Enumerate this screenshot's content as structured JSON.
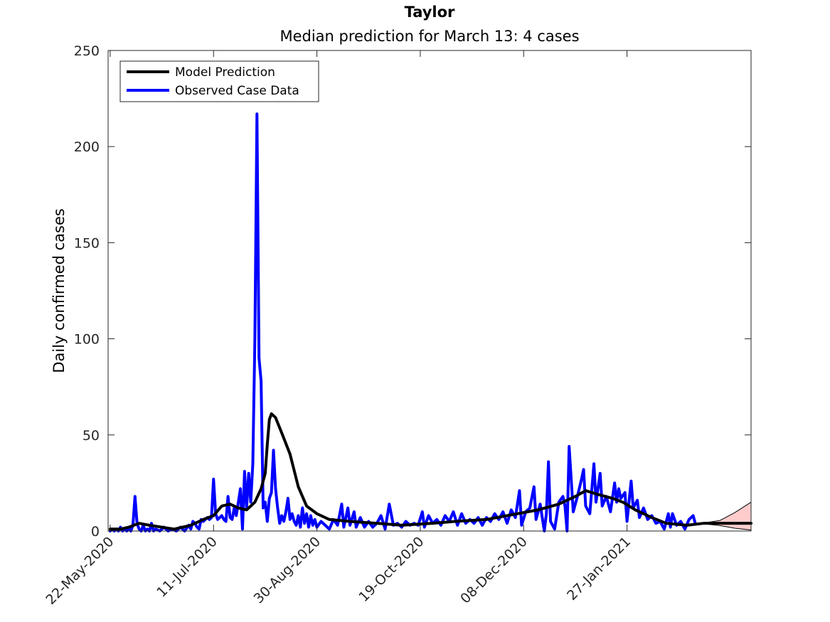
{
  "chart_data": {
    "type": "line",
    "title": "Taylor",
    "subtitle": "Median prediction for March 13: 4 cases",
    "xlabel": "",
    "ylabel": "Daily confirmed cases",
    "x_range": [
      "2020-05-21",
      "2021-03-28"
    ],
    "ylim": [
      0,
      250
    ],
    "y_ticks": [
      0,
      50,
      100,
      150,
      200,
      250
    ],
    "x_tick_labels": [
      "22-May-2020",
      "11-Jul-2020",
      "30-Aug-2020",
      "19-Oct-2020",
      "08-Dec-2020",
      "27-Jan-2021"
    ],
    "x_tick_dates": [
      "2020-05-22",
      "2020-07-11",
      "2020-08-30",
      "2020-10-19",
      "2020-12-08",
      "2021-01-27"
    ],
    "grid": false,
    "legend_position": "top-left",
    "colors": {
      "model": "#000000",
      "observed": "#0000ff",
      "band_fill": "#ffcccc"
    },
    "series": [
      {
        "name": "Model Prediction",
        "color": "#000000",
        "points": [
          [
            "2020-05-22",
            1
          ],
          [
            "2020-05-27",
            1
          ],
          [
            "2020-05-31",
            2
          ],
          [
            "2020-06-05",
            4
          ],
          [
            "2020-06-10",
            3
          ],
          [
            "2020-06-16",
            2
          ],
          [
            "2020-06-22",
            1
          ],
          [
            "2020-06-30",
            3
          ],
          [
            "2020-07-06",
            6
          ],
          [
            "2020-07-11",
            8
          ],
          [
            "2020-07-15",
            13
          ],
          [
            "2020-07-19",
            14
          ],
          [
            "2020-07-23",
            12
          ],
          [
            "2020-07-27",
            11
          ],
          [
            "2020-07-31",
            15
          ],
          [
            "2020-08-03",
            22
          ],
          [
            "2020-08-05",
            30
          ],
          [
            "2020-08-06",
            45
          ],
          [
            "2020-08-07",
            58
          ],
          [
            "2020-08-08",
            61
          ],
          [
            "2020-08-10",
            59
          ],
          [
            "2020-08-13",
            51
          ],
          [
            "2020-08-17",
            40
          ],
          [
            "2020-08-21",
            23
          ],
          [
            "2020-08-25",
            13
          ],
          [
            "2020-08-30",
            9
          ],
          [
            "2020-09-05",
            6
          ],
          [
            "2020-09-15",
            5
          ],
          [
            "2020-09-28",
            4
          ],
          [
            "2020-10-10",
            3
          ],
          [
            "2020-10-25",
            4
          ],
          [
            "2020-11-05",
            5
          ],
          [
            "2020-11-20",
            6
          ],
          [
            "2020-12-05",
            9
          ],
          [
            "2020-12-15",
            11
          ],
          [
            "2020-12-25",
            14
          ],
          [
            "2021-01-02",
            18
          ],
          [
            "2021-01-07",
            21
          ],
          [
            "2021-01-13",
            19
          ],
          [
            "2021-01-20",
            17
          ],
          [
            "2021-01-25",
            15
          ],
          [
            "2021-01-31",
            11
          ],
          [
            "2021-02-08",
            7
          ],
          [
            "2021-02-15",
            4
          ],
          [
            "2021-02-25",
            3
          ],
          [
            "2021-03-05",
            4
          ],
          [
            "2021-03-13",
            4
          ],
          [
            "2021-03-28",
            4
          ]
        ]
      },
      {
        "name": "Observed Case Data",
        "color": "#0000ff",
        "points": [
          [
            "2020-05-22",
            0
          ],
          [
            "2020-05-23",
            1
          ],
          [
            "2020-05-24",
            0
          ],
          [
            "2020-05-25",
            1
          ],
          [
            "2020-05-26",
            0
          ],
          [
            "2020-05-27",
            2
          ],
          [
            "2020-05-28",
            0
          ],
          [
            "2020-05-29",
            1
          ],
          [
            "2020-05-30",
            0
          ],
          [
            "2020-05-31",
            1
          ],
          [
            "2020-06-01",
            0
          ],
          [
            "2020-06-02",
            3
          ],
          [
            "2020-06-03",
            18
          ],
          [
            "2020-06-04",
            4
          ],
          [
            "2020-06-05",
            1
          ],
          [
            "2020-06-06",
            0
          ],
          [
            "2020-06-07",
            3
          ],
          [
            "2020-06-08",
            0
          ],
          [
            "2020-06-09",
            1
          ],
          [
            "2020-06-10",
            0
          ],
          [
            "2020-06-11",
            4
          ],
          [
            "2020-06-12",
            0
          ],
          [
            "2020-06-13",
            1
          ],
          [
            "2020-06-15",
            0
          ],
          [
            "2020-06-17",
            2
          ],
          [
            "2020-06-19",
            0
          ],
          [
            "2020-06-21",
            1
          ],
          [
            "2020-06-23",
            0
          ],
          [
            "2020-06-25",
            2
          ],
          [
            "2020-06-27",
            0
          ],
          [
            "2020-06-29",
            3
          ],
          [
            "2020-06-30",
            1
          ],
          [
            "2020-07-01",
            5
          ],
          [
            "2020-07-02",
            4
          ],
          [
            "2020-07-03",
            2
          ],
          [
            "2020-07-04",
            1
          ],
          [
            "2020-07-05",
            6
          ],
          [
            "2020-07-06",
            5
          ],
          [
            "2020-07-07",
            6
          ],
          [
            "2020-07-08",
            7
          ],
          [
            "2020-07-09",
            6
          ],
          [
            "2020-07-10",
            7
          ],
          [
            "2020-07-11",
            27
          ],
          [
            "2020-07-12",
            9
          ],
          [
            "2020-07-13",
            6
          ],
          [
            "2020-07-14",
            7
          ],
          [
            "2020-07-15",
            8
          ],
          [
            "2020-07-16",
            6
          ],
          [
            "2020-07-17",
            5
          ],
          [
            "2020-07-18",
            18
          ],
          [
            "2020-07-19",
            7
          ],
          [
            "2020-07-20",
            6
          ],
          [
            "2020-07-21",
            12
          ],
          [
            "2020-07-22",
            8
          ],
          [
            "2020-07-23",
            15
          ],
          [
            "2020-07-24",
            22
          ],
          [
            "2020-07-25",
            1
          ],
          [
            "2020-07-26",
            31
          ],
          [
            "2020-07-27",
            12
          ],
          [
            "2020-07-28",
            30
          ],
          [
            "2020-07-29",
            15
          ],
          [
            "2020-07-30",
            35
          ],
          [
            "2020-07-31",
            100
          ],
          [
            "2020-08-01",
            217
          ],
          [
            "2020-08-02",
            90
          ],
          [
            "2020-08-03",
            78
          ],
          [
            "2020-08-04",
            12
          ],
          [
            "2020-08-05",
            15
          ],
          [
            "2020-08-06",
            5
          ],
          [
            "2020-08-07",
            17
          ],
          [
            "2020-08-08",
            20
          ],
          [
            "2020-08-09",
            42
          ],
          [
            "2020-08-10",
            22
          ],
          [
            "2020-08-11",
            12
          ],
          [
            "2020-08-12",
            4
          ],
          [
            "2020-08-13",
            8
          ],
          [
            "2020-08-14",
            5
          ],
          [
            "2020-08-15",
            10
          ],
          [
            "2020-08-16",
            17
          ],
          [
            "2020-08-17",
            6
          ],
          [
            "2020-08-18",
            9
          ],
          [
            "2020-08-19",
            5
          ],
          [
            "2020-08-20",
            3
          ],
          [
            "2020-08-21",
            8
          ],
          [
            "2020-08-22",
            2
          ],
          [
            "2020-08-23",
            12
          ],
          [
            "2020-08-24",
            4
          ],
          [
            "2020-08-25",
            9
          ],
          [
            "2020-08-26",
            2
          ],
          [
            "2020-08-27",
            8
          ],
          [
            "2020-08-28",
            3
          ],
          [
            "2020-08-29",
            6
          ],
          [
            "2020-08-30",
            2
          ],
          [
            "2020-09-01",
            5
          ],
          [
            "2020-09-03",
            3
          ],
          [
            "2020-09-05",
            1
          ],
          [
            "2020-09-07",
            6
          ],
          [
            "2020-09-09",
            3
          ],
          [
            "2020-09-11",
            14
          ],
          [
            "2020-09-12",
            2
          ],
          [
            "2020-09-14",
            12
          ],
          [
            "2020-09-15",
            3
          ],
          [
            "2020-09-17",
            10
          ],
          [
            "2020-09-18",
            2
          ],
          [
            "2020-09-20",
            7
          ],
          [
            "2020-09-22",
            2
          ],
          [
            "2020-09-24",
            5
          ],
          [
            "2020-09-26",
            2
          ],
          [
            "2020-09-28",
            4
          ],
          [
            "2020-09-30",
            8
          ],
          [
            "2020-10-02",
            1
          ],
          [
            "2020-10-04",
            14
          ],
          [
            "2020-10-06",
            3
          ],
          [
            "2020-10-08",
            4
          ],
          [
            "2020-10-10",
            2
          ],
          [
            "2020-10-12",
            5
          ],
          [
            "2020-10-14",
            3
          ],
          [
            "2020-10-16",
            4
          ],
          [
            "2020-10-18",
            3
          ],
          [
            "2020-10-20",
            10
          ],
          [
            "2020-10-21",
            2
          ],
          [
            "2020-10-23",
            8
          ],
          [
            "2020-10-25",
            4
          ],
          [
            "2020-10-27",
            6
          ],
          [
            "2020-10-29",
            3
          ],
          [
            "2020-10-31",
            8
          ],
          [
            "2020-11-02",
            5
          ],
          [
            "2020-11-04",
            10
          ],
          [
            "2020-11-06",
            3
          ],
          [
            "2020-11-08",
            9
          ],
          [
            "2020-11-10",
            4
          ],
          [
            "2020-11-12",
            6
          ],
          [
            "2020-11-14",
            4
          ],
          [
            "2020-11-16",
            7
          ],
          [
            "2020-11-18",
            3
          ],
          [
            "2020-11-20",
            7
          ],
          [
            "2020-11-22",
            5
          ],
          [
            "2020-11-24",
            9
          ],
          [
            "2020-11-26",
            6
          ],
          [
            "2020-11-28",
            10
          ],
          [
            "2020-11-30",
            4
          ],
          [
            "2020-12-02",
            11
          ],
          [
            "2020-12-04",
            7
          ],
          [
            "2020-12-06",
            21
          ],
          [
            "2020-12-07",
            3
          ],
          [
            "2020-12-09",
            10
          ],
          [
            "2020-12-11",
            12
          ],
          [
            "2020-12-13",
            23
          ],
          [
            "2020-12-14",
            6
          ],
          [
            "2020-12-16",
            14
          ],
          [
            "2020-12-18",
            0
          ],
          [
            "2020-12-19",
            9
          ],
          [
            "2020-12-20",
            36
          ],
          [
            "2020-12-21",
            5
          ],
          [
            "2020-12-23",
            1
          ],
          [
            "2020-12-25",
            15
          ],
          [
            "2020-12-27",
            18
          ],
          [
            "2020-12-28",
            13
          ],
          [
            "2020-12-29",
            0
          ],
          [
            "2020-12-30",
            44
          ],
          [
            "2021-01-01",
            10
          ],
          [
            "2021-01-03",
            18
          ],
          [
            "2021-01-05",
            27
          ],
          [
            "2021-01-06",
            32
          ],
          [
            "2021-01-07",
            13
          ],
          [
            "2021-01-09",
            9
          ],
          [
            "2021-01-11",
            35
          ],
          [
            "2021-01-12",
            15
          ],
          [
            "2021-01-14",
            30
          ],
          [
            "2021-01-15",
            13
          ],
          [
            "2021-01-17",
            18
          ],
          [
            "2021-01-19",
            10
          ],
          [
            "2021-01-21",
            25
          ],
          [
            "2021-01-22",
            15
          ],
          [
            "2021-01-23",
            22
          ],
          [
            "2021-01-24",
            17
          ],
          [
            "2021-01-26",
            20
          ],
          [
            "2021-01-27",
            5
          ],
          [
            "2021-01-29",
            26
          ],
          [
            "2021-01-30",
            12
          ],
          [
            "2021-02-01",
            16
          ],
          [
            "2021-02-02",
            7
          ],
          [
            "2021-02-04",
            12
          ],
          [
            "2021-02-06",
            6
          ],
          [
            "2021-02-08",
            8
          ],
          [
            "2021-02-10",
            4
          ],
          [
            "2021-02-12",
            5
          ],
          [
            "2021-02-14",
            1
          ],
          [
            "2021-02-16",
            9
          ],
          [
            "2021-02-17",
            2
          ],
          [
            "2021-02-18",
            9
          ],
          [
            "2021-02-20",
            3
          ],
          [
            "2021-02-22",
            5
          ],
          [
            "2021-02-24",
            1
          ],
          [
            "2021-02-26",
            6
          ],
          [
            "2021-02-28",
            8
          ],
          [
            "2021-03-01",
            4
          ]
        ]
      }
    ],
    "uncertainty_band": {
      "color": "#ffcccc",
      "upper": [
        [
          "2021-03-01",
          4
        ],
        [
          "2021-03-07",
          4.5
        ],
        [
          "2021-03-13",
          5.5
        ],
        [
          "2021-03-20",
          9.5
        ],
        [
          "2021-03-28",
          15
        ]
      ],
      "lower": [
        [
          "2021-03-01",
          4
        ],
        [
          "2021-03-07",
          3.5
        ],
        [
          "2021-03-13",
          2.8
        ],
        [
          "2021-03-20",
          1.5
        ],
        [
          "2021-03-28",
          0.5
        ]
      ]
    }
  }
}
